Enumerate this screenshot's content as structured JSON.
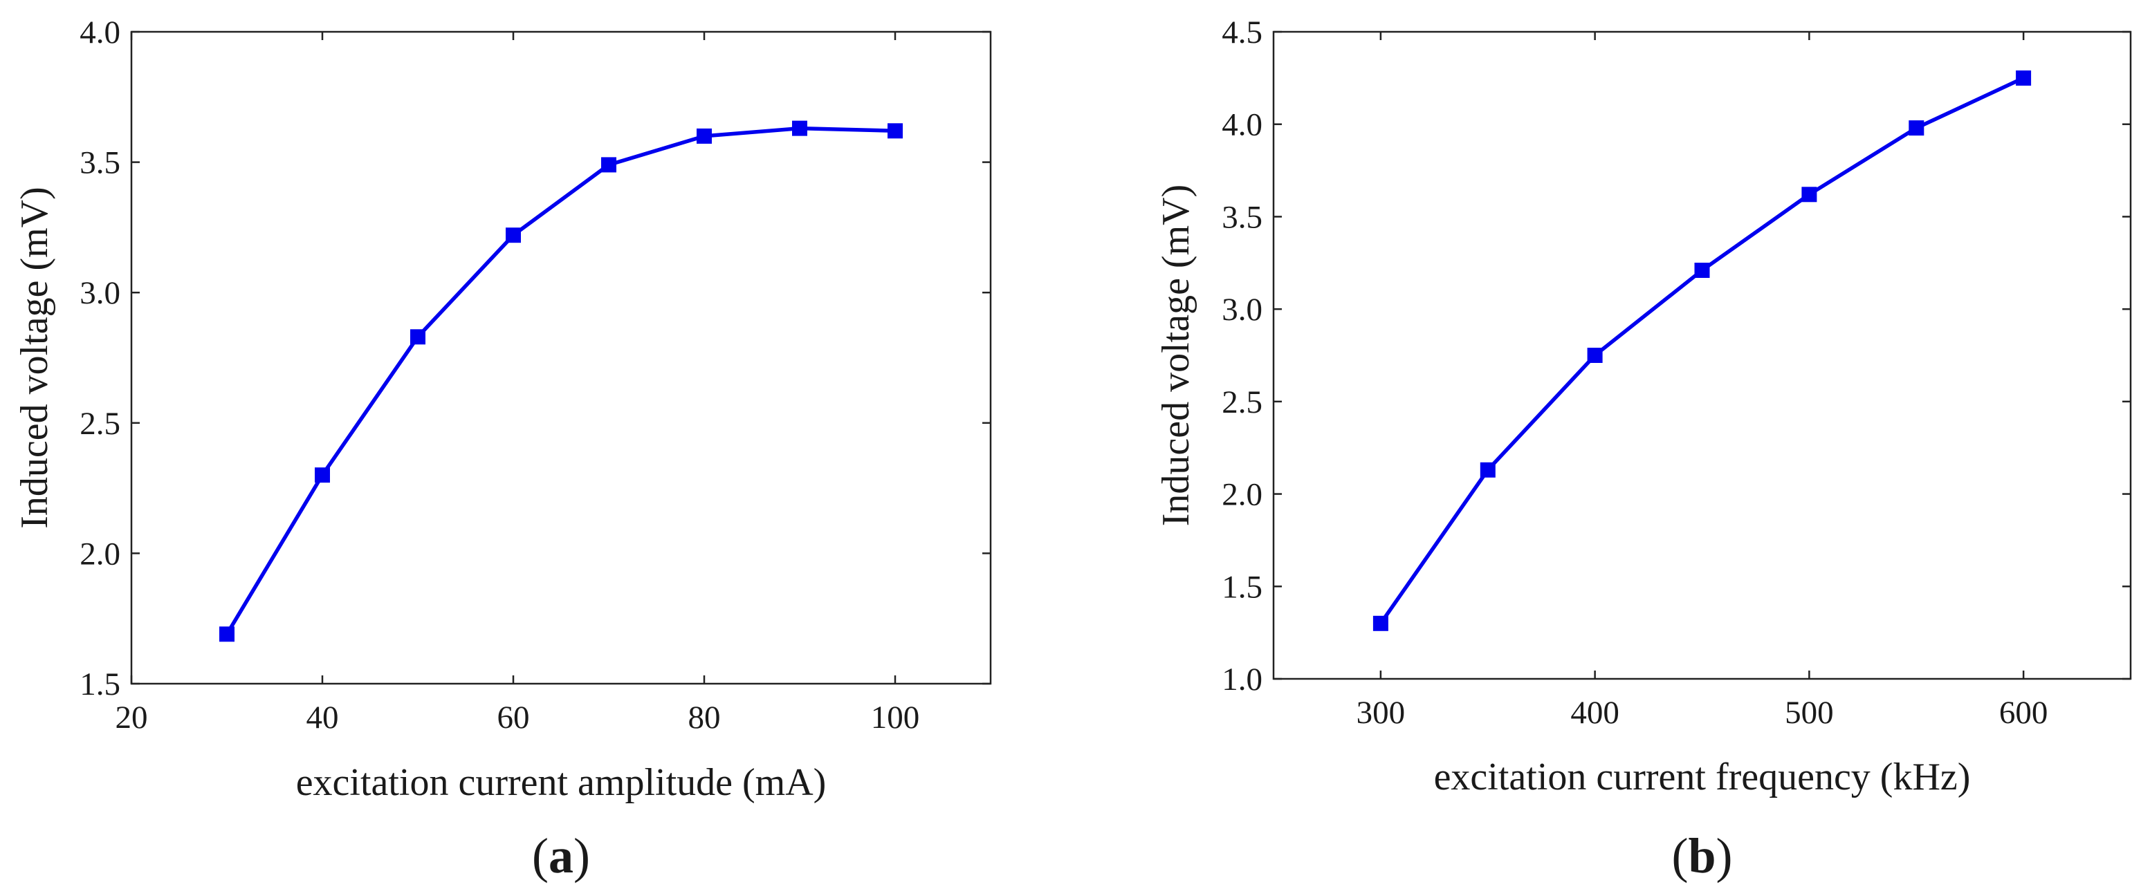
{
  "colors": {
    "series": "#0000ee",
    "axis": "#222222",
    "text": "#1a1a1a"
  },
  "chart_data": [
    {
      "type": "line",
      "panel_label_open": "(",
      "panel_label_letter": "a",
      "panel_label_close": ")",
      "title": "",
      "xlabel": "excitation current  amplitude (mA)",
      "ylabel": "Induced voltage (mV)",
      "xlim": [
        20,
        110
      ],
      "ylim": [
        1.5,
        4.0
      ],
      "xticks": [
        20,
        40,
        60,
        80,
        100
      ],
      "xtick_labels": [
        "20",
        "40",
        "60",
        "80",
        "100"
      ],
      "yticks": [
        1.5,
        2.0,
        2.5,
        3.0,
        3.5,
        4.0
      ],
      "ytick_labels": [
        "1.5",
        "2.0",
        "2.5",
        "3.0",
        "3.5",
        "4.0"
      ],
      "grid": false,
      "marker": "square",
      "series": [
        {
          "name": "Induced voltage",
          "x": [
            30,
            40,
            50,
            60,
            70,
            80,
            90,
            100
          ],
          "values": [
            1.69,
            2.3,
            2.83,
            3.22,
            3.49,
            3.6,
            3.63,
            3.62
          ]
        }
      ]
    },
    {
      "type": "line",
      "panel_label_open": "(",
      "panel_label_letter": "b",
      "panel_label_close": ")",
      "title": "",
      "xlabel": "excitation current frequency (kHz)",
      "ylabel": "Induced voltage (mV)",
      "xlim": [
        250,
        650
      ],
      "ylim": [
        1.0,
        4.5
      ],
      "xticks": [
        300,
        400,
        500,
        600
      ],
      "xtick_labels": [
        "300",
        "400",
        "500",
        "600"
      ],
      "yticks": [
        1.0,
        1.5,
        2.0,
        2.5,
        3.0,
        3.5,
        4.0,
        4.5
      ],
      "ytick_labels": [
        "1.0",
        "1.5",
        "2.0",
        "2.5",
        "3.0",
        "3.5",
        "4.0",
        "4.5"
      ],
      "grid": false,
      "marker": "square",
      "series": [
        {
          "name": "Induced voltage",
          "x": [
            300,
            350,
            400,
            450,
            500,
            550,
            600
          ],
          "values": [
            1.3,
            2.13,
            2.75,
            3.21,
            3.62,
            3.98,
            4.25
          ]
        }
      ]
    }
  ]
}
